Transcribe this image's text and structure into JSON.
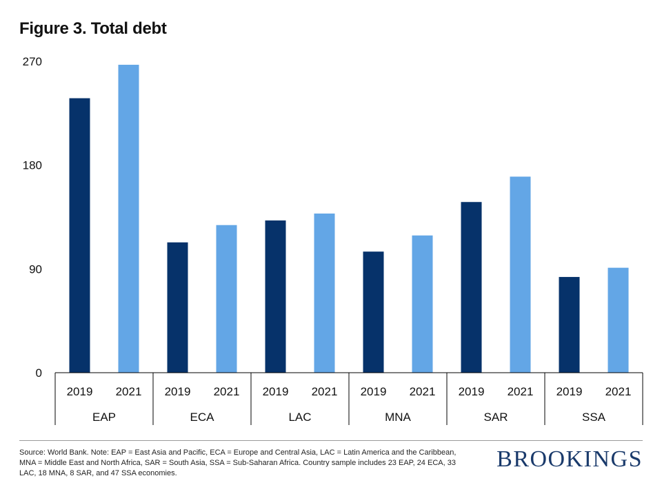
{
  "title": "Figure 3. Total debt",
  "footer": {
    "source": "Source: World Bank. Note: EAP = East Asia and Pacific, ECA = Europe and Central Asia, LAC = Latin America and the Caribbean, MNA = Middle East and North Africa, SAR = South Asia, SSA = Sub-Saharan Africa. Country sample includes 23 EAP, 24 ECA, 33 LAC, 18 MNA, 8 SAR, and 47 SSA economies.",
    "logo": "BROOKINGS"
  },
  "colors": {
    "series_2019": "#06326a",
    "series_2021": "#63a6e6"
  },
  "chart_data": {
    "type": "bar",
    "title": "Figure 3. Total debt",
    "xlabel": "",
    "ylabel": "",
    "ylim": [
      0,
      270
    ],
    "yticks": [
      0,
      90,
      180,
      270
    ],
    "grid": false,
    "legend": "none",
    "categories": [
      "EAP",
      "ECA",
      "LAC",
      "MNA",
      "SAR",
      "SSA"
    ],
    "series": [
      {
        "name": "2019",
        "values": [
          238,
          113,
          132,
          105,
          148,
          83
        ]
      },
      {
        "name": "2021",
        "values": [
          267,
          128,
          138,
          119,
          170,
          91
        ]
      }
    ]
  }
}
